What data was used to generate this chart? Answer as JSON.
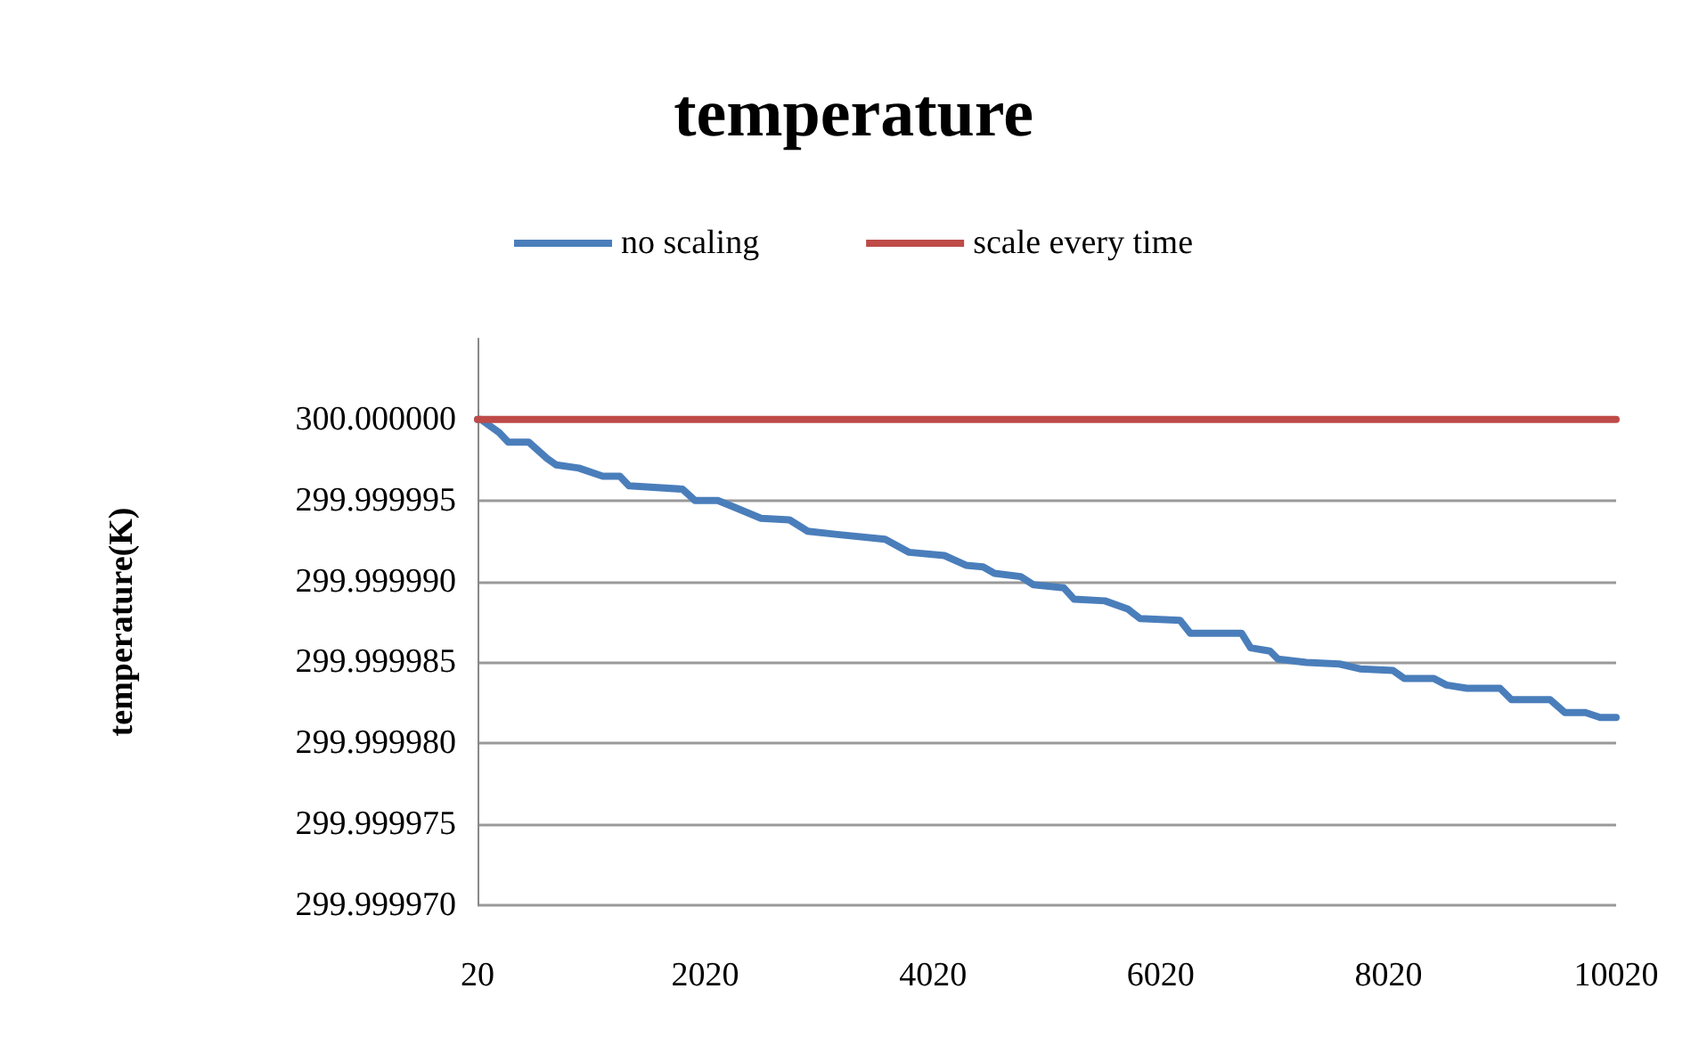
{
  "chart_data": {
    "type": "line",
    "title": "temperature",
    "ylabel": "temperature(K)",
    "xlim": [
      20,
      10020
    ],
    "xticks": [
      20,
      2020,
      4020,
      6020,
      8020,
      10020
    ],
    "ylim": [
      299.99997,
      300.000005
    ],
    "yticks": [
      {
        "value": 299.99997,
        "label": "299.999970"
      },
      {
        "value": 299.999975,
        "label": "299.999975"
      },
      {
        "value": 299.99998,
        "label": "299.999980"
      },
      {
        "value": 299.999985,
        "label": "299.999985"
      },
      {
        "value": 299.99999,
        "label": "299.999990"
      },
      {
        "value": 299.999995,
        "label": "299.999995"
      },
      {
        "value": 300,
        "label": "300.000000"
      }
    ],
    "grid": "y",
    "legend": "top",
    "marker": "none",
    "line_style": "solid",
    "series": [
      {
        "name": "no scaling",
        "color": "#4a7ebb",
        "x": [
          20,
          50,
          210,
          290,
          470,
          630,
          710,
          910,
          1120,
          1270,
          1350,
          1820,
          1930,
          2130,
          2270,
          2510,
          2760,
          2920,
          3180,
          3600,
          3810,
          4120,
          4310,
          4460,
          4560,
          4790,
          4900,
          5170,
          5260,
          5530,
          5730,
          5840,
          6190,
          6280,
          6620,
          6730,
          6810,
          6980,
          7050,
          7300,
          7590,
          7770,
          8060,
          8160,
          8420,
          8530,
          8710,
          9000,
          9100,
          9440,
          9570,
          9750,
          9880,
          10020
        ],
        "values": [
          300,
          300,
          299.9999992,
          299.9999986,
          299.9999986,
          299.9999976,
          299.9999972,
          299.999997,
          299.9999965,
          299.9999965,
          299.9999959,
          299.9999957,
          299.999995,
          299.999995,
          299.9999946,
          299.9999939,
          299.9999938,
          299.9999931,
          299.9999929,
          299.9999926,
          299.9999918,
          299.9999916,
          299.999991,
          299.9999909,
          299.9999905,
          299.9999903,
          299.9999898,
          299.9999896,
          299.9999889,
          299.9999888,
          299.9999883,
          299.9999877,
          299.9999876,
          299.9999868,
          299.9999868,
          299.9999868,
          299.9999859,
          299.9999857,
          299.9999852,
          299.999985,
          299.9999849,
          299.9999846,
          299.9999845,
          299.999984,
          299.999984,
          299.9999836,
          299.9999834,
          299.9999834,
          299.9999827,
          299.9999827,
          299.9999819,
          299.9999819,
          299.9999816,
          299.9999816
        ]
      },
      {
        "name": "scale every time",
        "color": "#be4b48",
        "x": [
          20,
          10020
        ],
        "values": [
          300,
          300
        ]
      }
    ]
  }
}
